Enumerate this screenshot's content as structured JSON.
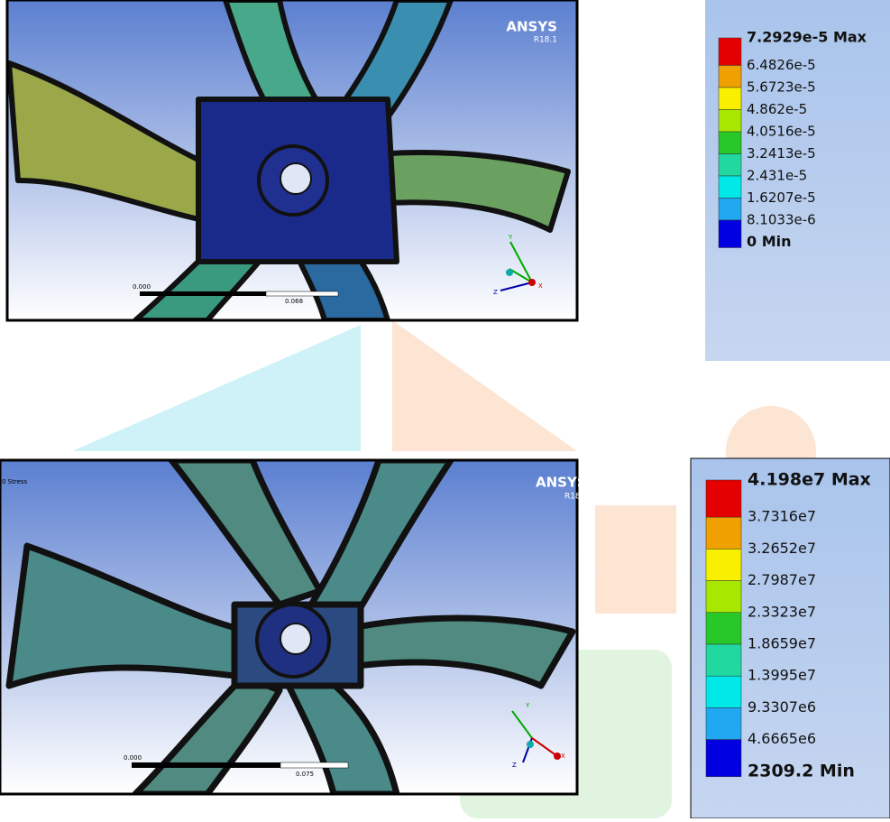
{
  "panels": [
    {
      "render": {
        "brand": "ANSYS",
        "version": "R18.1",
        "scale_start": "0.000",
        "scale_end": "0.068",
        "axes": [
          "Y",
          "Z",
          "X"
        ]
      },
      "legend": {
        "labels": [
          "7.2929e-5 Max",
          "6.4826e-5",
          "5.6723e-5",
          "4.862e-5",
          "4.0516e-5",
          "3.2413e-5",
          "2.431e-5",
          "1.6207e-5",
          "8.1033e-6",
          "0 Min"
        ],
        "colors": [
          "#e40000",
          "#f0a000",
          "#f8f000",
          "#a8e800",
          "#28c828",
          "#20d8a0",
          "#00e8e8",
          "#20a8f0",
          "#0000e0"
        ]
      }
    },
    {
      "render": {
        "title": "0 Stress",
        "brand": "ANSYS",
        "version": "R18",
        "scale_start": "0.000",
        "scale_end": "0.075",
        "axes": [
          "Y",
          "Z",
          "X"
        ]
      },
      "legend": {
        "labels": [
          "4.198e7 Max",
          "3.7316e7",
          "3.2652e7",
          "2.7987e7",
          "2.3323e7",
          "1.8659e7",
          "1.3995e7",
          "9.3307e6",
          "4.6665e6",
          "2309.2 Min"
        ],
        "colors": [
          "#e40000",
          "#f0a000",
          "#f8f000",
          "#a8e800",
          "#28c828",
          "#20d8a0",
          "#00e8e8",
          "#20a8f0",
          "#0000e0"
        ]
      }
    }
  ]
}
